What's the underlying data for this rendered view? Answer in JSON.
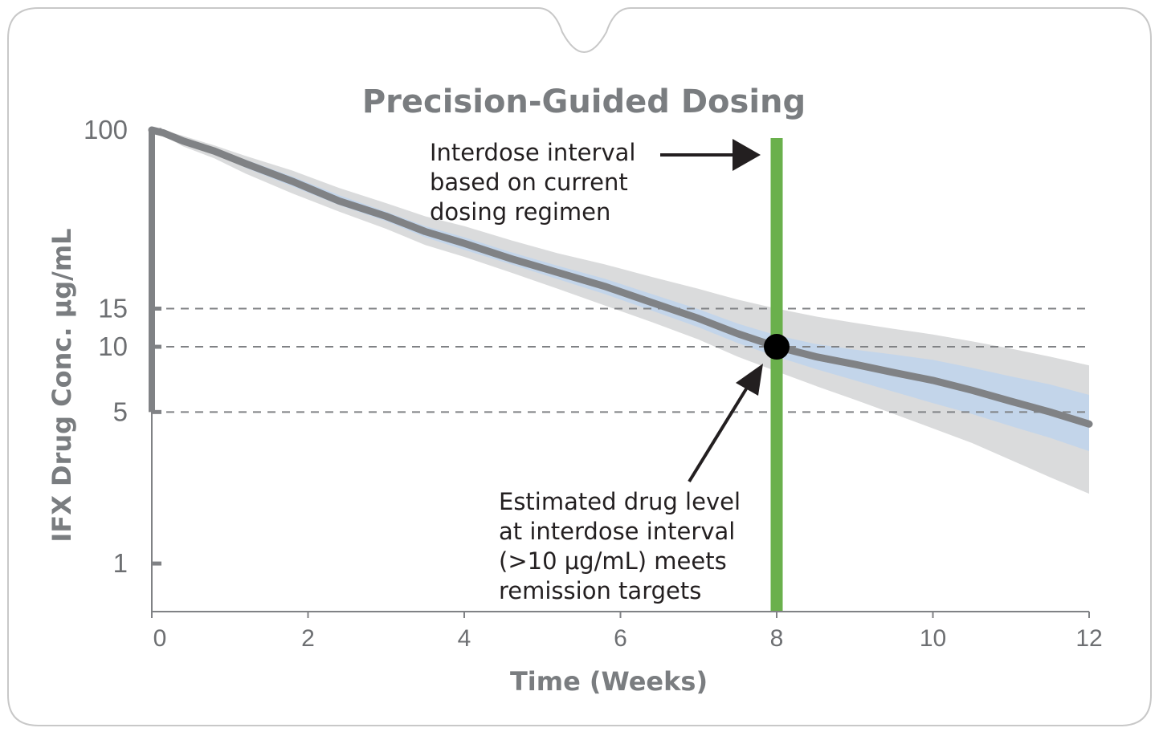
{
  "chart_data": {
    "type": "line",
    "title": "Precision-Guided Dosing",
    "xlabel": "Time (Weeks)",
    "ylabel": "IFX Drug Conc. μg/mL",
    "x_ticks": [
      0,
      2,
      4,
      6,
      8,
      10,
      12
    ],
    "y_ticks": [
      1,
      5,
      10,
      15,
      100
    ],
    "xlim": [
      0,
      12
    ],
    "ylim": [
      0.6,
      100
    ],
    "y_scale": "log",
    "reference_lines_y": [
      5,
      10,
      15
    ],
    "vertical_marker_x": 8,
    "series": [
      {
        "x": [
          0,
          0.15,
          0.4,
          0.8,
          1.2,
          1.8,
          2.4,
          3.0,
          3.5,
          4.0,
          4.6,
          5.2,
          5.8,
          6.4,
          7.0,
          7.5,
          8.0,
          8.5,
          9.0,
          9.5,
          10.0,
          10.5,
          11.0,
          11.5,
          12.0
        ],
        "y": [
          100,
          97,
          89,
          80,
          70,
          58,
          47,
          40,
          34,
          30,
          25.5,
          22,
          19,
          16,
          13.5,
          11.5,
          10,
          9.0,
          8.3,
          7.6,
          7.0,
          6.3,
          5.6,
          5.0,
          4.4
        ],
        "ci_inner_low": [
          100,
          96,
          87,
          78,
          67,
          55,
          45,
          38,
          32,
          28,
          24,
          20.5,
          17.5,
          14.7,
          12.3,
          10.4,
          9.0,
          7.9,
          7.0,
          6.2,
          5.5,
          4.9,
          4.3,
          3.8,
          3.3
        ],
        "ci_inner_high": [
          100,
          98,
          91,
          82,
          73,
          61,
          50,
          42,
          36,
          32,
          27.3,
          23.6,
          20.6,
          17.5,
          14.9,
          12.8,
          11.3,
          10.3,
          9.7,
          9.2,
          8.7,
          8.0,
          7.3,
          6.7,
          6.0
        ],
        "ci_outer_low": [
          100,
          94,
          84,
          74,
          63,
          51,
          42,
          35,
          29.5,
          26,
          22,
          18.5,
          15.5,
          13,
          10.8,
          9.0,
          7.7,
          6.6,
          5.7,
          4.9,
          4.2,
          3.6,
          3.0,
          2.5,
          2.1
        ],
        "ci_outer_high": [
          100,
          100,
          94,
          85,
          76,
          65,
          54,
          46,
          40,
          36,
          31,
          27,
          24,
          21,
          18.5,
          16.5,
          15,
          13.8,
          12.9,
          12.1,
          11.4,
          10.6,
          9.8,
          9.0,
          8.2
        ]
      }
    ],
    "highlight_point": {
      "x": 8,
      "y": 10
    },
    "annotations": [
      {
        "lines": [
          "Interdose interval",
          "based on current",
          "dosing regimen"
        ]
      },
      {
        "lines": [
          "Estimated drug level",
          "at interdose interval",
          "(>10 μg/mL) meets",
          "remission targets"
        ]
      }
    ],
    "colors": {
      "line": "#808285",
      "ci_inner": "#c3d5ea",
      "ci_outer": "#dadbdc",
      "vertical_marker": "#6ab04c",
      "axis": "#808285",
      "grid_dash": "#808285",
      "card_border": "#c8c8c8"
    }
  }
}
